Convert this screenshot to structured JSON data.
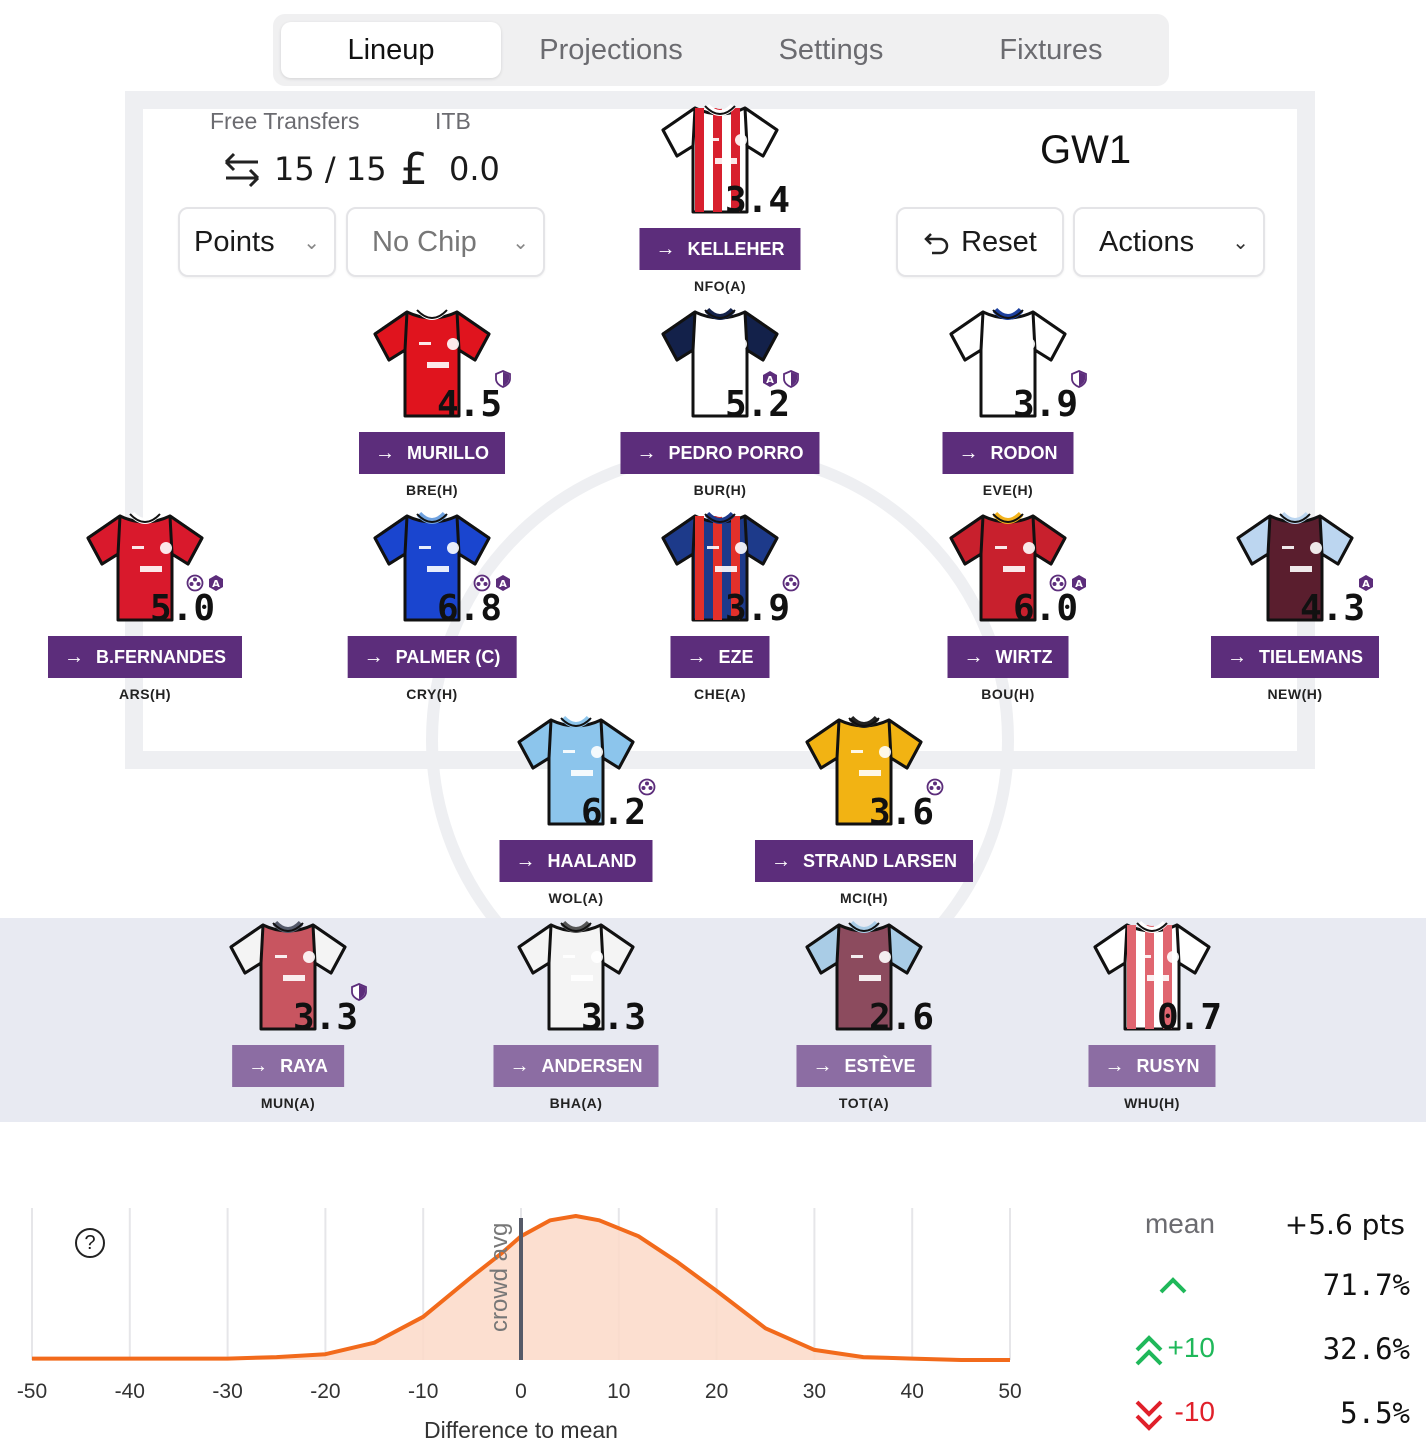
{
  "tabs": [
    {
      "label": "Lineup",
      "active": true
    },
    {
      "label": "Projections",
      "active": false
    },
    {
      "label": "Settings",
      "active": false
    },
    {
      "label": "Fixtures",
      "active": false
    }
  ],
  "info": {
    "free_transfers_label": "Free Transfers",
    "free_transfers_value": "15 / 15",
    "itb_label": "ITB",
    "itb_value": "0.0",
    "points_dropdown": "Points",
    "chip_dropdown": "No Chip",
    "gameweek": "GW1",
    "reset_label": "Reset",
    "actions_label": "Actions"
  },
  "players": [
    {
      "name": "KELLEHER",
      "fixture": "NFO(A)",
      "score": "3.4",
      "kit": "stripes-red",
      "badges": []
    },
    {
      "name": "MURILLO",
      "fixture": "BRE(H)",
      "score": "4.5",
      "kit": "red",
      "badges": [
        "shield"
      ]
    },
    {
      "name": "PEDRO PORRO",
      "fixture": "BUR(H)",
      "score": "5.2",
      "kit": "white-navy",
      "badges": [
        "assist",
        "shield"
      ]
    },
    {
      "name": "RODON",
      "fixture": "EVE(H)",
      "score": "3.9",
      "kit": "white-blue",
      "badges": [
        "shield"
      ]
    },
    {
      "name": "B.FERNANDES",
      "fixture": "ARS(H)",
      "score": "5.0",
      "kit": "red2",
      "badges": [
        "goal",
        "assist"
      ]
    },
    {
      "name": "PALMER (C)",
      "fixture": "CRY(H)",
      "score": "6.8",
      "kit": "blue",
      "badges": [
        "goal",
        "assist"
      ]
    },
    {
      "name": "EZE",
      "fixture": "CHE(A)",
      "score": "3.9",
      "kit": "stripes-blue-red",
      "badges": [
        "goal"
      ]
    },
    {
      "name": "WIRTZ",
      "fixture": "BOU(H)",
      "score": "6.0",
      "kit": "liverpool",
      "badges": [
        "goal",
        "assist"
      ]
    },
    {
      "name": "TIELEMANS",
      "fixture": "NEW(H)",
      "score": "4.3",
      "kit": "claret",
      "badges": [
        "assist"
      ]
    },
    {
      "name": "HAALAND",
      "fixture": "WOL(A)",
      "score": "6.2",
      "kit": "skyblue",
      "badges": [
        "goal"
      ]
    },
    {
      "name": "STRAND LARSEN",
      "fixture": "MCI(H)",
      "score": "3.6",
      "kit": "gold",
      "badges": [
        "goal"
      ]
    },
    {
      "name": "RAYA",
      "fixture": "MUN(A)",
      "score": "3.3",
      "kit": "arsenal-bench",
      "badges": [
        "shield"
      ]
    },
    {
      "name": "ANDERSEN",
      "fixture": "BHA(A)",
      "score": "3.3",
      "kit": "white-grey",
      "badges": []
    },
    {
      "name": "ESTÈVE",
      "fixture": "TOT(A)",
      "score": "2.6",
      "kit": "claret-bench",
      "badges": []
    },
    {
      "name": "RUSYN",
      "fixture": "WHU(H)",
      "score": "0.7",
      "kit": "stripes-bench",
      "badges": []
    }
  ],
  "chart_data": {
    "type": "area",
    "xlabel": "Difference to mean",
    "ylabel": "",
    "xlim": [
      -50,
      50
    ],
    "x_ticks": [
      "-50",
      "-40",
      "-30",
      "-20",
      "-10",
      "0",
      "10",
      "20",
      "30",
      "40",
      "50"
    ],
    "marker_label": "crowd avg",
    "marker_x": 0,
    "x": [
      -50,
      -40,
      -30,
      -25,
      -20,
      -15,
      -10,
      -5,
      -2,
      0,
      3,
      5.6,
      8,
      12,
      16,
      20,
      25,
      30,
      35,
      40,
      45,
      50
    ],
    "y": [
      0.01,
      0.01,
      0.01,
      0.02,
      0.04,
      0.12,
      0.3,
      0.58,
      0.74,
      0.86,
      0.97,
      1.0,
      0.97,
      0.86,
      0.68,
      0.48,
      0.22,
      0.07,
      0.02,
      0.01,
      0.0,
      0.0
    ],
    "colors": {
      "line": "#f26a1b",
      "fill": "#fbd9c8",
      "marker": "#555a68"
    }
  },
  "stats": {
    "mean_label": "mean",
    "mean_value": "+5.6 pts",
    "up_value": "71.7%",
    "plus10_label": "+10",
    "plus10_value": "32.6%",
    "minus10_label": "-10",
    "minus10_value": "5.5%",
    "colors": {
      "up": "#1fb85a",
      "down": "#e0202a"
    }
  }
}
